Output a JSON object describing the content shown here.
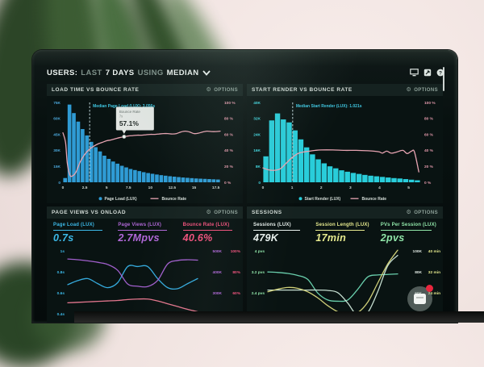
{
  "topbar": {
    "users_label": "USERS:",
    "last_label": "LAST",
    "days_label": "7 DAYS",
    "using_label": "USING",
    "median_label": "MEDIAN"
  },
  "panels": [
    {
      "title": "LOAD TIME VS BOUNCE RATE",
      "options_label": "OPTIONS"
    },
    {
      "title": "START RENDER VS BOUNCE RATE",
      "options_label": "OPTIONS"
    },
    {
      "title": "PAGE VIEWS VS ONLOAD",
      "options_label": "OPTIONS",
      "stats": [
        {
          "label": "Page Load (LUX)",
          "value": "0.7s",
          "color": "#3cb9e8"
        },
        {
          "label": "Page Views (LUX)",
          "value": "2.7Mpvs",
          "color": "#b168d8"
        },
        {
          "label": "Bounce Rate (LUX)",
          "value": "40.6%",
          "color": "#f0517c"
        }
      ]
    },
    {
      "title": "SESSIONS",
      "options_label": "OPTIONS",
      "stats": [
        {
          "label": "Sessions (LUX)",
          "value": "479K",
          "color": "#e9f1ee"
        },
        {
          "label": "Session Length (LUX)",
          "value": "17min",
          "color": "#e6ea8e"
        },
        {
          "label": "PVs Per Session (LUX)",
          "value": "2pvs",
          "color": "#90e6a9"
        }
      ]
    }
  ],
  "chart_data": [
    {
      "type": "bar",
      "name": "load-time-vs-bounce-rate",
      "bar_series": "Page Load (LUX)",
      "line_series": "Bounce Rate",
      "x_bin": 0.5,
      "x_max": 18,
      "bar_values_k": [
        4,
        73,
        65,
        57,
        50,
        44,
        38,
        33,
        29,
        25,
        22,
        19.5,
        17.5,
        15.5,
        14,
        12.5,
        11.5,
        10.5,
        9.5,
        8.7,
        8,
        7.3,
        6.7,
        6.2,
        5.7,
        5.3,
        4.9,
        4.5,
        4.2,
        3.9,
        3.6,
        3.4,
        3.2,
        3,
        2.8,
        2.6
      ],
      "y_left_max": 75,
      "y_left_ticks": [
        "75K",
        "60K",
        "45K",
        "30K",
        "15K",
        "0"
      ],
      "y_right_ticks": [
        "100 %",
        "80 %",
        "60 %",
        "40 %",
        "20 %",
        "0 %"
      ],
      "x_ticks": [
        "0",
        "2.5",
        "5",
        "7.5",
        "10",
        "12.5",
        "15",
        "17.5"
      ],
      "line_points_pct": [
        [
          0,
          62
        ],
        [
          0.3,
          50
        ],
        [
          0.5,
          24
        ],
        [
          0.8,
          9
        ],
        [
          1.1,
          8
        ],
        [
          1.5,
          13
        ],
        [
          2,
          26
        ],
        [
          2.5,
          35
        ],
        [
          3,
          41
        ],
        [
          3.5,
          45
        ],
        [
          4,
          48
        ],
        [
          4.5,
          50
        ],
        [
          5,
          52
        ],
        [
          5.5,
          53
        ],
        [
          6,
          54.5
        ],
        [
          6.5,
          56
        ],
        [
          7,
          57.1
        ],
        [
          7.5,
          58
        ],
        [
          8,
          58.5
        ],
        [
          8.5,
          59
        ],
        [
          9,
          59
        ],
        [
          9.5,
          59.5
        ],
        [
          10,
          60
        ],
        [
          10.5,
          60
        ],
        [
          11,
          60.5
        ],
        [
          11.5,
          61
        ],
        [
          12,
          61
        ],
        [
          12.5,
          60.5
        ],
        [
          13,
          61
        ],
        [
          13.5,
          63
        ],
        [
          14,
          64
        ],
        [
          14.5,
          63
        ],
        [
          15,
          61
        ],
        [
          15.5,
          61.5
        ],
        [
          16,
          63
        ],
        [
          16.5,
          64
        ],
        [
          17,
          63.5
        ],
        [
          17.5,
          63.5
        ],
        [
          18,
          64
        ]
      ],
      "median": {
        "x": 3.06,
        "label": "Median Page Load (LUX): 3.056s"
      },
      "tooltip": {
        "title": "Bounce Rate",
        "x_value": "7s",
        "value": "57.1%",
        "at_x": 7,
        "at_pct": 57.1
      },
      "legend": [
        {
          "marker": "dot",
          "label": "Page Load (LUX)"
        },
        {
          "marker": "line",
          "label": "Bounce Rate"
        }
      ],
      "bar_color": "#2f9bd4",
      "axis_left_color": "#4aa5d8",
      "line_color": "#e7a4b2",
      "axis_right_color": "#e49aac"
    },
    {
      "type": "bar",
      "name": "start-render-vs-bounce-rate",
      "bar_series": "Start Render (LUX)",
      "line_series": "Bounce Rate",
      "x_bin": 0.2,
      "x_max": 5.4,
      "bar_values_k": [
        13,
        31,
        34.5,
        31.5,
        30,
        26,
        21.5,
        17.5,
        14,
        11.5,
        9.5,
        8,
        7,
        6,
        5.3,
        4.7,
        4.2,
        3.7,
        3.3,
        3,
        2.7,
        2.4,
        2.1,
        1.9,
        1.6,
        1.3,
        1
      ],
      "y_left_max": 40,
      "y_left_ticks": [
        "40K",
        "32K",
        "24K",
        "16K",
        "8K",
        "0"
      ],
      "y_right_ticks": [
        "100 %",
        "80 %",
        "60 %",
        "40 %",
        "20 %",
        "0 %"
      ],
      "x_ticks": [
        "0",
        "1",
        "2",
        "3",
        "4",
        "5"
      ],
      "line_points_pct": [
        [
          0,
          18
        ],
        [
          0.2,
          15.5
        ],
        [
          0.4,
          15
        ],
        [
          0.6,
          17
        ],
        [
          0.8,
          24
        ],
        [
          1,
          31
        ],
        [
          1.2,
          36
        ],
        [
          1.4,
          38
        ],
        [
          1.6,
          39
        ],
        [
          1.8,
          40
        ],
        [
          2,
          40.5
        ],
        [
          2.4,
          40.5
        ],
        [
          2.8,
          40
        ],
        [
          3.2,
          40
        ],
        [
          3.6,
          39.5
        ],
        [
          3.8,
          39
        ],
        [
          4,
          38
        ],
        [
          4.1,
          36.5
        ],
        [
          4.25,
          39
        ],
        [
          4.4,
          36.5
        ],
        [
          4.6,
          38
        ],
        [
          4.8,
          40
        ],
        [
          4.95,
          36
        ],
        [
          5.1,
          39
        ],
        [
          5.2,
          38
        ],
        [
          5.35,
          13
        ]
      ],
      "median": {
        "x": 1.02,
        "label": "Median Start Render (LUX): 1.021s"
      },
      "legend": [
        {
          "marker": "dot",
          "label": "Start Render (LUX)"
        },
        {
          "marker": "line",
          "label": "Bounce Rate"
        }
      ],
      "bar_color": "#29cdda",
      "axis_left_color": "#3fd4de",
      "line_color": "#e7a4b2",
      "axis_right_color": "#e49aac"
    },
    {
      "type": "line",
      "name": "page-views-vs-onload",
      "y_left_ticks": [
        "1s",
        "0.8s",
        "0.6s",
        "0.4s"
      ],
      "y_left_color": "#3cb9e8",
      "y_right_cols": [
        {
          "color": "#b168d8",
          "ticks": [
            "500K",
            "400K",
            "300K",
            "200K"
          ]
        },
        {
          "color": "#f0517c",
          "ticks": [
            "100%",
            "80%",
            "60%",
            "40%"
          ]
        }
      ],
      "series": [
        {
          "name": "Page Load (LUX)",
          "color": "#38b2e8",
          "range": [
            0.33,
            1.02
          ],
          "values": [
            0.66,
            0.7,
            0.72,
            0.67,
            0.63,
            0.68,
            0.84,
            0.84,
            0.84,
            0.72,
            0.63,
            0.62,
            0.67,
            0.72
          ]
        },
        {
          "name": "Page Views (LUX)",
          "color": "#a963d6",
          "range": [
            160,
            540
          ],
          "values": [
            482,
            478,
            472,
            464,
            452,
            420,
            345,
            333,
            331,
            365,
            455,
            474,
            478,
            476
          ]
        },
        {
          "name": "Bounce Rate (LUX)",
          "color": "#ef7b95",
          "range": [
            28,
            102
          ],
          "values": [
            44,
            44.5,
            45,
            45.5,
            46,
            46.5,
            47.5,
            48,
            48,
            46,
            43,
            40,
            37,
            34.5
          ]
        }
      ]
    },
    {
      "type": "line",
      "name": "sessions",
      "y_left_ticks": [
        "4 pvs",
        "3.2 pvs",
        "2.4 pvs",
        "1.6 pvs"
      ],
      "y_left_color": "#90e6a9",
      "y_right_cols": [
        {
          "color": "#dfe8e2",
          "ticks": [
            "100K",
            "80K",
            "60K",
            "40K"
          ]
        },
        {
          "color": "#e6ea8e",
          "ticks": [
            "40 min",
            "32 min",
            "24 min",
            ""
          ]
        }
      ],
      "series": [
        {
          "name": "PVs Per Session (LUX)",
          "color": "#6fd9b5",
          "range": [
            1.35,
            4.15
          ],
          "values": [
            3.2,
            3.18,
            3.14,
            3.06,
            2.9,
            2.35,
            2.07,
            2.02,
            2.07,
            2.5,
            3.0,
            3.08,
            3.1,
            3.12
          ]
        },
        {
          "name": "Sessions (LUX)",
          "color": "#cfe8da",
          "range": [
            28,
            108
          ],
          "values": [
            60,
            60,
            60,
            60,
            60,
            60,
            59.5,
            57,
            45,
            30,
            34,
            58,
            88,
            100
          ]
        },
        {
          "name": "Session Length (LUX)",
          "color": "#d9d97e",
          "range": [
            2,
            42
          ],
          "values": [
            17,
            18.5,
            19.5,
            19,
            17,
            13.5,
            9,
            5.5,
            4,
            5,
            11,
            22,
            33,
            41
          ]
        }
      ]
    }
  ]
}
